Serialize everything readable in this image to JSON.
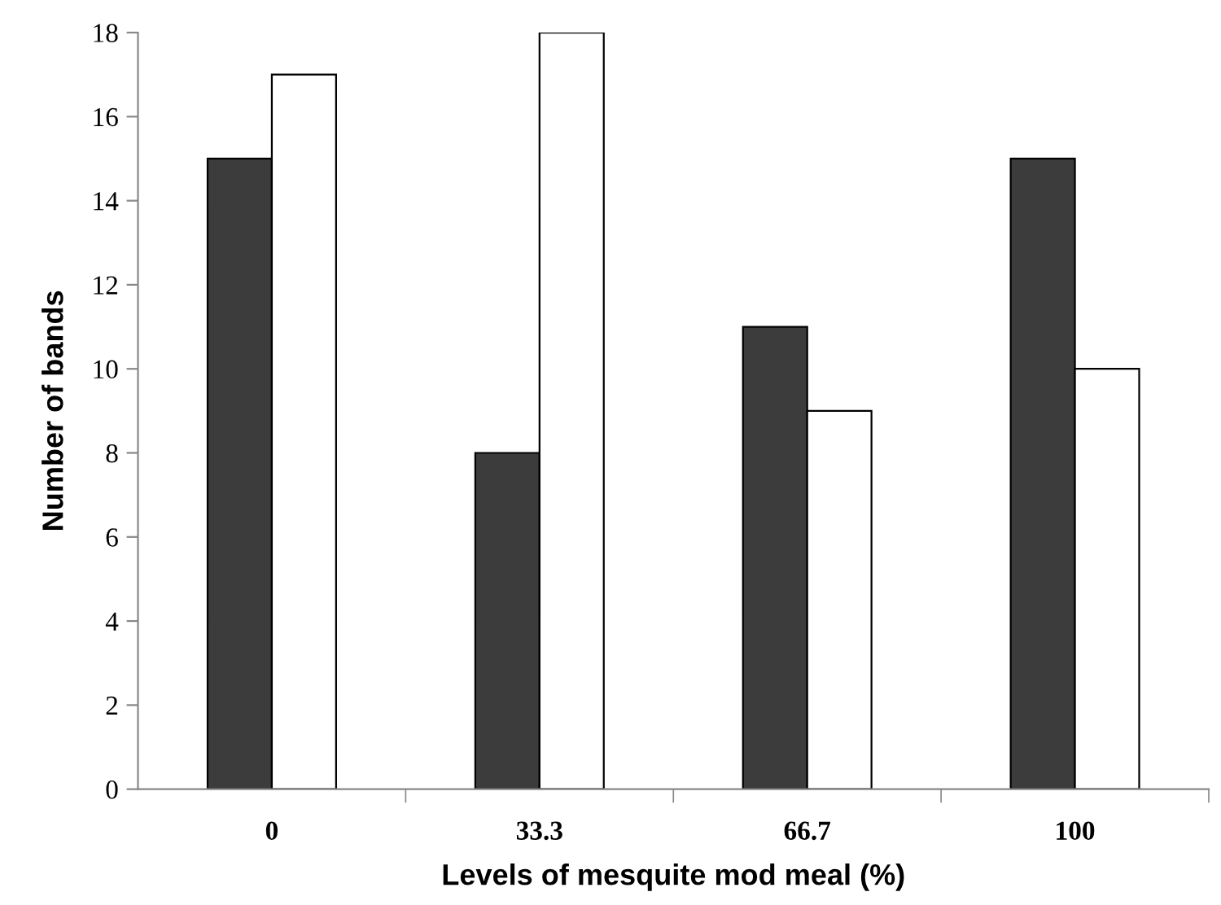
{
  "chart_data": {
    "type": "bar",
    "xlabel": "Levels of mesquite mod meal (%)",
    "ylabel": "Number of bands",
    "categories": [
      "0",
      "33.3",
      "66.7",
      "100"
    ],
    "series": [
      {
        "color": "#3c3c3c",
        "values": [
          15,
          8,
          11,
          15
        ]
      },
      {
        "color": "#ffffff",
        "values": [
          17,
          18,
          9,
          10
        ]
      }
    ],
    "ylim": [
      0,
      18
    ],
    "yticks": [
      0,
      2,
      4,
      6,
      8,
      10,
      12,
      14,
      16,
      18
    ],
    "grid": false,
    "legend": false
  }
}
